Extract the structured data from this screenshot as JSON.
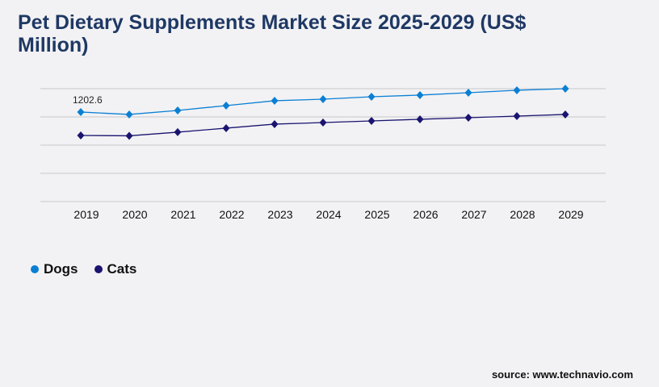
{
  "chart_data": {
    "type": "line",
    "title": "Pet Dietary Supplements Market Size 2025-2029 (US$ Million)",
    "categories": [
      "2019",
      "2020",
      "2021",
      "2022",
      "2023",
      "2024",
      "2025",
      "2026",
      "2027",
      "2028",
      "2029"
    ],
    "series": [
      {
        "name": "Dogs",
        "color": "#0a7fd4",
        "values": [
          1202.6,
          1170,
          1224,
          1289,
          1354,
          1375,
          1408,
          1430,
          1462,
          1495,
          1516
        ]
      },
      {
        "name": "Cats",
        "color": "#1a1470",
        "values": [
          888,
          883,
          932,
          986,
          1040,
          1061,
          1083,
          1105,
          1126,
          1148,
          1170
        ]
      }
    ],
    "data_labels": [
      {
        "series": "Dogs",
        "category": "2019",
        "text": "1202.6"
      }
    ],
    "ylim": [
      0,
      1516
    ],
    "grid": true,
    "legend": "bottom-left",
    "xlabel": "",
    "ylabel": ""
  },
  "source": "source: www.technavio.com"
}
